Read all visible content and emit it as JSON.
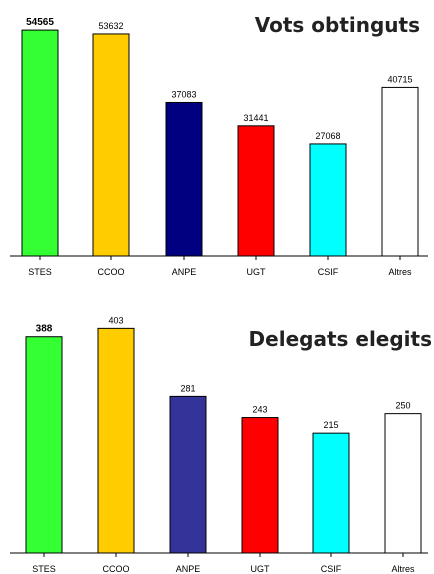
{
  "chart_data": [
    {
      "type": "bar",
      "title": "Vots obtinguts",
      "categories": [
        "STES",
        "CCOO",
        "ANPE",
        "UGT",
        "CSIF",
        "Altres"
      ],
      "values": [
        54565,
        53632,
        37083,
        31441,
        27068,
        40715
      ],
      "colors": [
        "#33ff33",
        "#ffcc00",
        "#000080",
        "#ff0000",
        "#00ffff",
        "#ffffff"
      ],
      "highlight_category": "STES",
      "ylim": [
        0,
        57000
      ],
      "grid": false,
      "legend": "none"
    },
    {
      "type": "bar",
      "title": "Delegats elegits",
      "categories": [
        "STES",
        "CCOO",
        "ANPE",
        "UGT",
        "CSIF",
        "Altres"
      ],
      "values": [
        388,
        403,
        281,
        243,
        215,
        250
      ],
      "colors": [
        "#33ff33",
        "#ffcc00",
        "#333399",
        "#ff0000",
        "#00ffff",
        "#ffffff"
      ],
      "highlight_category": "STES",
      "ylim": [
        0,
        418
      ],
      "grid": false,
      "legend": "none"
    }
  ]
}
